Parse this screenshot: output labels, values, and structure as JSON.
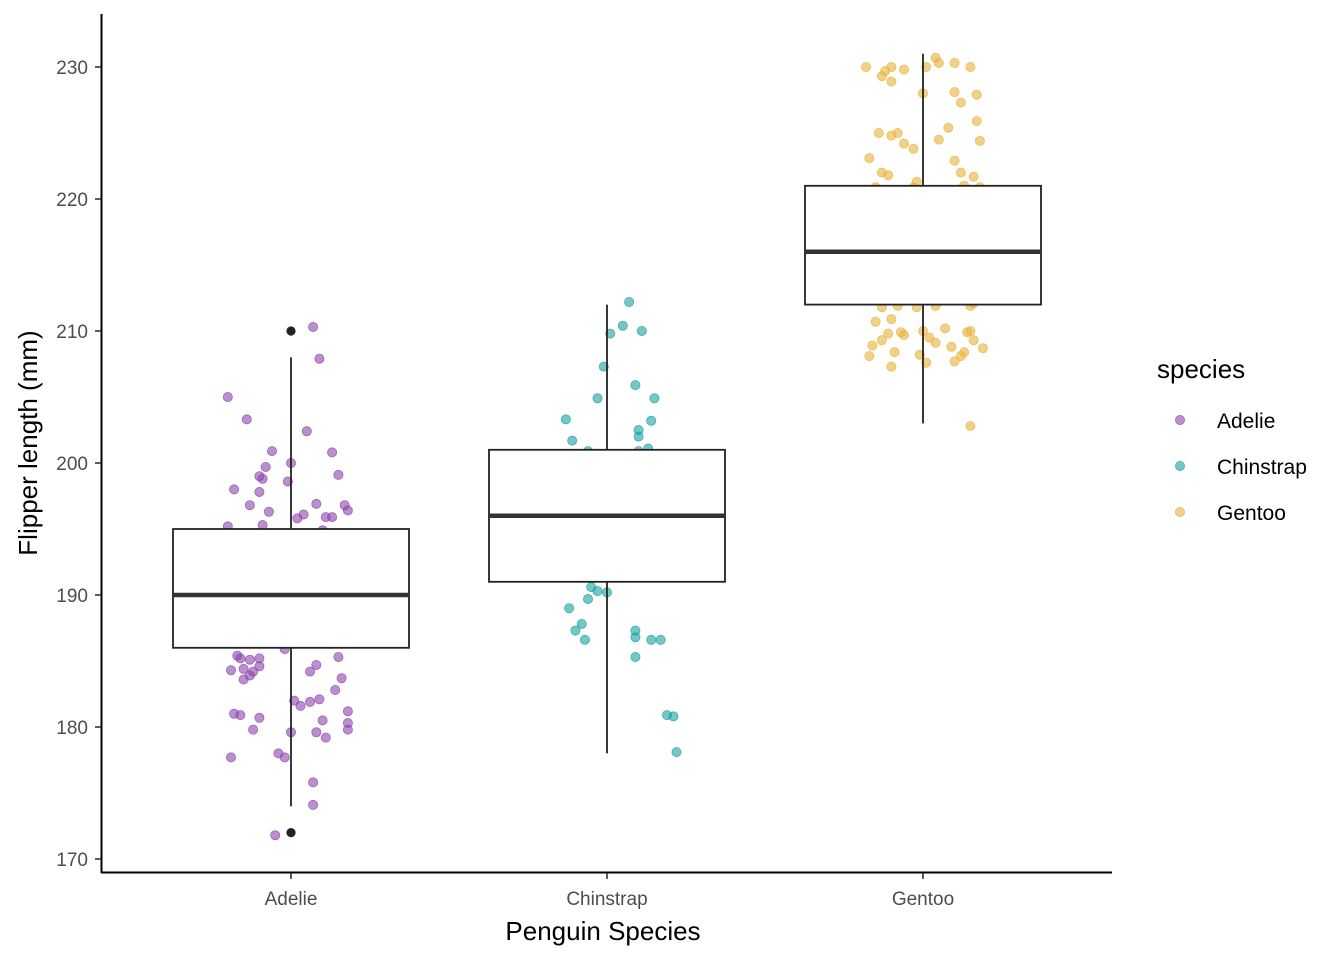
{
  "chart_data": {
    "type": "boxplot",
    "xlabel": "Penguin Species",
    "ylabel": "Flipper length (mm)",
    "ylim": [
      169,
      234
    ],
    "yticks": [
      "170",
      "180",
      "190",
      "200",
      "210",
      "220",
      "230"
    ],
    "categories": [
      "Adelie",
      "Chinstrap",
      "Gentoo"
    ],
    "grid": false,
    "legend": {
      "title": "species",
      "position": "right",
      "items": [
        {
          "label": "Adelie",
          "color": "#8E44AD"
        },
        {
          "label": "Chinstrap",
          "color": "#17A2A0"
        },
        {
          "label": "Gentoo",
          "color": "#E8B33A"
        }
      ]
    },
    "boxes": [
      {
        "category": "Adelie",
        "whisker_low": 174,
        "q1": 186,
        "median": 190,
        "q3": 195,
        "whisker_high": 208,
        "outliers": [
          172,
          210
        ]
      },
      {
        "category": "Chinstrap",
        "whisker_low": 178,
        "q1": 191,
        "median": 196,
        "q3": 201,
        "whisker_high": 212,
        "outliers": []
      },
      {
        "category": "Gentoo",
        "whisker_low": 203,
        "q1": 212,
        "median": 216,
        "q3": 221,
        "whisker_high": 231,
        "outliers": []
      }
    ],
    "points": {
      "Adelie": [
        [
          -0.2,
          205
        ],
        [
          -0.14,
          203.3
        ],
        [
          -0.18,
          198
        ],
        [
          -0.1,
          197.8
        ],
        [
          -0.09,
          198.8
        ],
        [
          -0.08,
          199.7
        ],
        [
          -0.1,
          199
        ],
        [
          -0.06,
          200.9
        ],
        [
          -0.13,
          196.8
        ],
        [
          -0.07,
          196.3
        ],
        [
          -0.2,
          195.2
        ],
        [
          -0.09,
          195.3
        ],
        [
          0.07,
          210.3
        ],
        [
          0.09,
          207.9
        ],
        [
          0.05,
          202.4
        ],
        [
          0.0,
          200.0
        ],
        [
          -0.01,
          198.6
        ],
        [
          0.02,
          195.8
        ],
        [
          0.04,
          196.1
        ],
        [
          0.08,
          196.9
        ],
        [
          0.11,
          195.9
        ],
        [
          0.13,
          195.9
        ],
        [
          0.17,
          196.8
        ],
        [
          0.18,
          196.4
        ],
        [
          0.15,
          199.1
        ],
        [
          0.13,
          200.8
        ],
        [
          0.1,
          194.9
        ],
        [
          -0.17,
          185.4
        ],
        [
          -0.16,
          185.2
        ],
        [
          -0.13,
          185.1
        ],
        [
          -0.1,
          185.2
        ],
        [
          -0.15,
          184.4
        ],
        [
          -0.19,
          184.3
        ],
        [
          -0.13,
          183.9
        ],
        [
          -0.12,
          184.2
        ],
        [
          -0.1,
          184.6
        ],
        [
          -0.15,
          183.6
        ],
        [
          -0.18,
          181.0
        ],
        [
          -0.16,
          180.9
        ],
        [
          -0.1,
          180.7
        ],
        [
          -0.12,
          179.8
        ],
        [
          -0.19,
          177.7
        ],
        [
          -0.04,
          178.0
        ],
        [
          -0.02,
          177.7
        ],
        [
          -0.0,
          179.6
        ],
        [
          0.03,
          181.6
        ],
        [
          0.06,
          184.2
        ],
        [
          0.08,
          184.7
        ],
        [
          0.09,
          182.1
        ],
        [
          0.1,
          180.5
        ],
        [
          0.08,
          179.6
        ],
        [
          0.11,
          179.2
        ],
        [
          0.14,
          182.8
        ],
        [
          0.15,
          185.3
        ],
        [
          0.16,
          183.7
        ],
        [
          0.18,
          181.2
        ],
        [
          0.18,
          180.3
        ],
        [
          0.18,
          179.8
        ],
        [
          0.04,
          186.4
        ],
        [
          -0.02,
          185.9
        ],
        [
          0.01,
          182.0
        ],
        [
          0.06,
          181.9
        ],
        [
          0.07,
          175.8
        ],
        [
          0.07,
          174.1
        ],
        [
          -0.05,
          171.8
        ]
      ],
      "Chinstrap": [
        [
          -0.13,
          203.3
        ],
        [
          -0.11,
          201.7
        ],
        [
          -0.06,
          200.9
        ],
        [
          -0.03,
          204.9
        ],
        [
          -0.01,
          207.3
        ],
        [
          0.01,
          209.8
        ],
        [
          0.05,
          210.4
        ],
        [
          0.07,
          212.2
        ],
        [
          0.11,
          210.0
        ],
        [
          0.09,
          205.9
        ],
        [
          0.15,
          204.9
        ],
        [
          0.14,
          203.2
        ],
        [
          0.1,
          202.5
        ],
        [
          0.1,
          202.0
        ],
        [
          0.13,
          201.1
        ],
        [
          0.1,
          200.9
        ],
        [
          -0.12,
          189.0
        ],
        [
          -0.1,
          187.3
        ],
        [
          -0.08,
          187.8
        ],
        [
          -0.07,
          186.6
        ],
        [
          -0.06,
          189.7
        ],
        [
          -0.05,
          190.6
        ],
        [
          -0.03,
          190.3
        ],
        [
          0.0,
          190.2
        ],
        [
          0.09,
          187.3
        ],
        [
          0.09,
          186.8
        ],
        [
          0.09,
          185.3
        ],
        [
          0.14,
          186.6
        ],
        [
          0.17,
          186.6
        ],
        [
          0.19,
          180.9
        ],
        [
          0.21,
          180.8
        ],
        [
          0.22,
          178.1
        ]
      ],
      "Gentoo": [
        [
          -0.18,
          230.0
        ],
        [
          -0.12,
          229.7
        ],
        [
          -0.1,
          230.0
        ],
        [
          -0.13,
          229.3
        ],
        [
          -0.1,
          228.9
        ],
        [
          -0.06,
          229.8
        ],
        [
          0.01,
          230.0
        ],
        [
          0.0,
          228.0
        ],
        [
          0.04,
          230.7
        ],
        [
          0.05,
          230.3
        ],
        [
          0.1,
          230.3
        ],
        [
          0.15,
          230.0
        ],
        [
          0.17,
          227.9
        ],
        [
          0.12,
          227.3
        ],
        [
          0.1,
          228.1
        ],
        [
          0.17,
          225.9
        ],
        [
          -0.14,
          225.0
        ],
        [
          -0.1,
          224.8
        ],
        [
          -0.08,
          225.0
        ],
        [
          -0.06,
          224.2
        ],
        [
          -0.03,
          223.8
        ],
        [
          0.05,
          224.5
        ],
        [
          0.08,
          225.4
        ],
        [
          0.12,
          222.0
        ],
        [
          -0.17,
          223.1
        ],
        [
          -0.13,
          222.0
        ],
        [
          -0.11,
          221.8
        ],
        [
          0.1,
          222.9
        ],
        [
          0.16,
          221.7
        ],
        [
          0.18,
          220.9
        ],
        [
          0.13,
          221.0
        ],
        [
          0.18,
          224.4
        ],
        [
          -0.02,
          221.3
        ],
        [
          -0.15,
          220.9
        ],
        [
          -0.03,
          220.9
        ],
        [
          -0.13,
          211.8
        ],
        [
          -0.1,
          210.9
        ],
        [
          -0.08,
          211.9
        ],
        [
          -0.15,
          210.7
        ],
        [
          -0.16,
          208.9
        ],
        [
          -0.17,
          208.1
        ],
        [
          -0.13,
          209.3
        ],
        [
          -0.11,
          209.8
        ],
        [
          -0.1,
          207.3
        ],
        [
          -0.09,
          208.4
        ],
        [
          -0.07,
          209.9
        ],
        [
          -0.06,
          209.7
        ],
        [
          0.0,
          210.0
        ],
        [
          -0.01,
          208.2
        ],
        [
          0.01,
          207.6
        ],
        [
          0.02,
          209.5
        ],
        [
          0.04,
          209.1
        ],
        [
          0.07,
          210.2
        ],
        [
          0.09,
          208.8
        ],
        [
          0.1,
          207.7
        ],
        [
          0.12,
          208.1
        ],
        [
          0.13,
          208.4
        ],
        [
          0.14,
          209.9
        ],
        [
          0.16,
          209.3
        ],
        [
          0.15,
          210.0
        ],
        [
          0.15,
          211.9
        ],
        [
          0.16,
          212.1
        ],
        [
          0.19,
          208.7
        ],
        [
          -0.02,
          211.8
        ],
        [
          0.04,
          211.9
        ],
        [
          0.15,
          202.8
        ]
      ]
    }
  }
}
